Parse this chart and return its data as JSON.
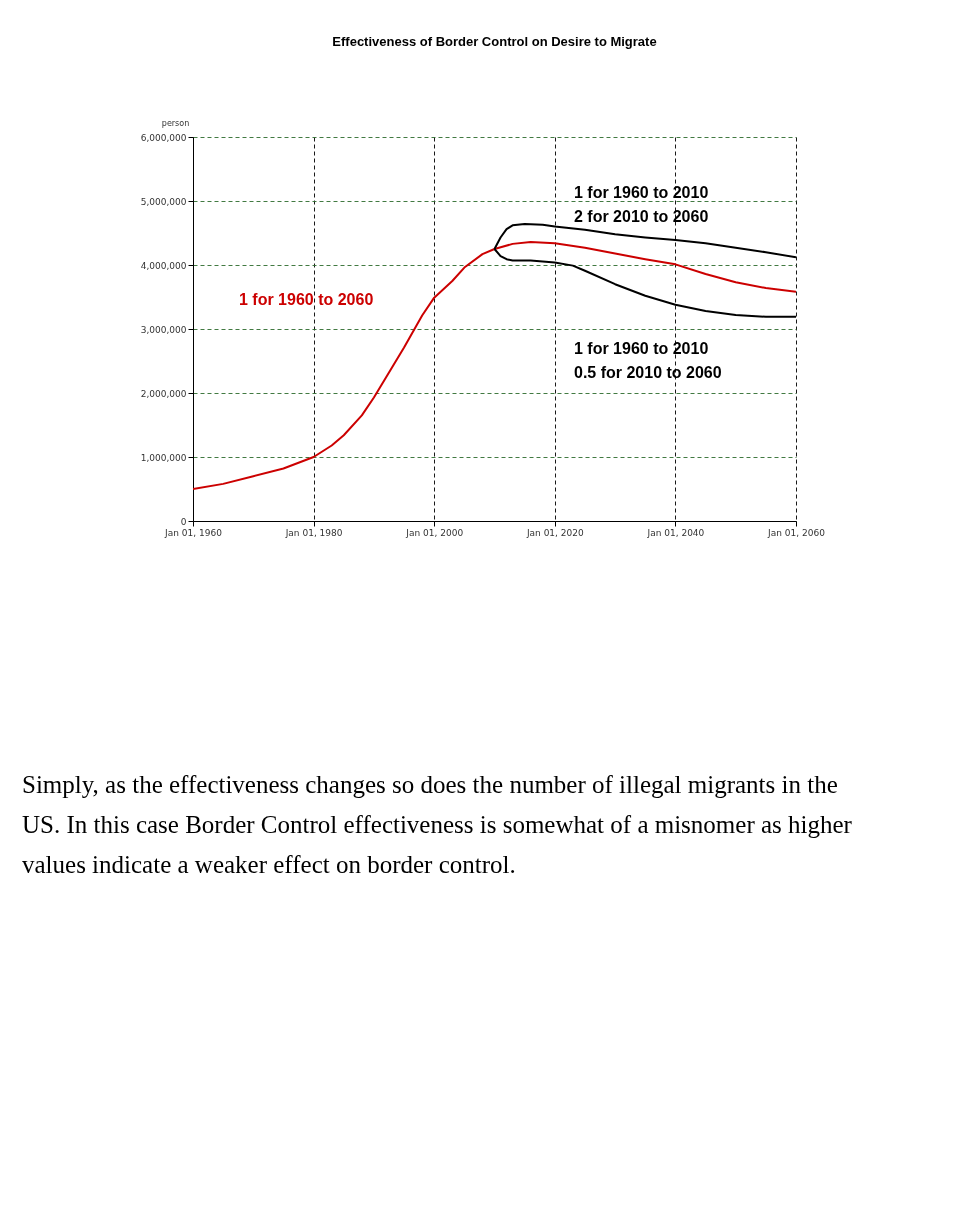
{
  "chart_data": {
    "type": "line",
    "title": "Effectiveness of Border Control on Desire to Migrate",
    "ylabel": "person",
    "x": [
      "1960",
      "1965",
      "1970",
      "1975",
      "1980",
      "1983",
      "1985",
      "1988",
      "1990",
      "1993",
      "1995",
      "1998",
      "2000",
      "2003",
      "2005",
      "2008",
      "2010",
      "2013",
      "2016",
      "2020",
      "2025",
      "2030",
      "2035",
      "2040",
      "2045",
      "2050",
      "2055",
      "2060"
    ],
    "series": [
      {
        "color": "#cc0000",
        "values": [
          500000,
          580000,
          700000,
          820000,
          1000000,
          1180000,
          1340000,
          1650000,
          1930000,
          2400000,
          2710000,
          3210000,
          3490000,
          3750000,
          3960000,
          4170000,
          4250000,
          4330000,
          4360000,
          4340000,
          4270000,
          4180000,
          4090000,
          4010000,
          3860000,
          3730000,
          3640000,
          3580000
        ]
      },
      {
        "color": "#000000",
        "x": [
          "2010",
          "2011",
          "2012",
          "2013",
          "2015",
          "2018",
          "2020",
          "2025",
          "2030",
          "2035",
          "2040",
          "2045",
          "2050",
          "2055",
          "2060"
        ],
        "values": [
          4250000,
          4430000,
          4560000,
          4620000,
          4640000,
          4630000,
          4600000,
          4550000,
          4480000,
          4430000,
          4390000,
          4340000,
          4270000,
          4200000,
          4120000
        ]
      },
      {
        "color": "#000000",
        "x": [
          "2010",
          "2011",
          "2012",
          "2013",
          "2016",
          "2020",
          "2023",
          "2025",
          "2030",
          "2035",
          "2040",
          "2045",
          "2050",
          "2055",
          "2060"
        ],
        "values": [
          4250000,
          4140000,
          4090000,
          4070000,
          4070000,
          4040000,
          3990000,
          3910000,
          3700000,
          3520000,
          3380000,
          3280000,
          3220000,
          3190000,
          3190000
        ]
      }
    ],
    "xlim": [
      "1960",
      "2060"
    ],
    "xticks": [
      {
        "value": "1960",
        "label": "Jan 01, 1960"
      },
      {
        "value": "1980",
        "label": "Jan 01, 1980"
      },
      {
        "value": "2000",
        "label": "Jan 01, 2000"
      },
      {
        "value": "2020",
        "label": "Jan 01, 2020"
      },
      {
        "value": "2040",
        "label": "Jan 01, 2040"
      },
      {
        "value": "2060",
        "label": "Jan 01, 2060"
      }
    ],
    "ylim": [
      0,
      6000000
    ],
    "yticks": [
      {
        "value": 0,
        "label": "0"
      },
      {
        "value": 1000000,
        "label": "1,000,000"
      },
      {
        "value": 2000000,
        "label": "2,000,000"
      },
      {
        "value": 3000000,
        "label": "3,000,000"
      },
      {
        "value": 4000000,
        "label": "4,000,000"
      },
      {
        "value": 5000000,
        "label": "5,000,000"
      },
      {
        "value": 6000000,
        "label": "6,000,000"
      }
    ],
    "grid": true,
    "line_style": "solid",
    "marker": "none",
    "annotations": [
      "1 for 1960 to 2060",
      "1 for 1960 to 2010\n2 for 2010 to 2060",
      "1    for 1960 to 2010\n0.5 for 2010 to 2060",
      "Simply, as the effectiveness changes so does the number of illegal migrants in the US. In this case Border Control effectiveness is somewhat of a misnomer as higher values indicate a weaker effect on border control."
    ]
  }
}
